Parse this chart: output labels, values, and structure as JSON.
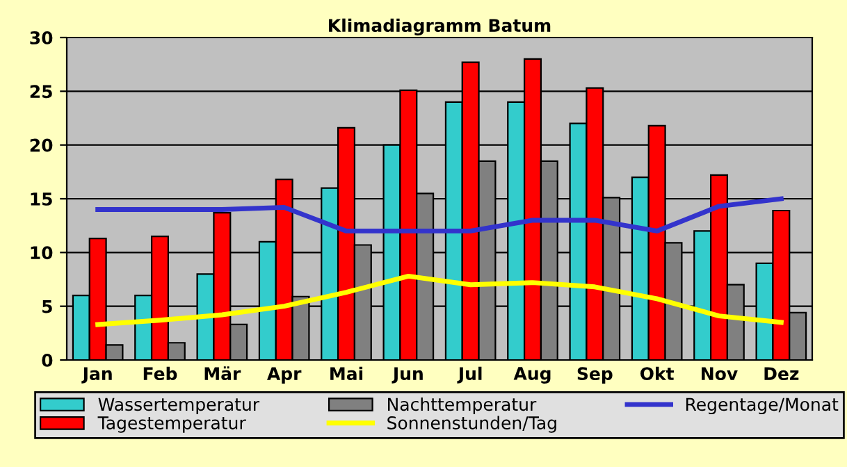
{
  "chart_data": {
    "type": "bar",
    "title": "Klimadiagramm Batum",
    "categories": [
      "Jan",
      "Feb",
      "Mär",
      "Apr",
      "Mai",
      "Jun",
      "Jul",
      "Aug",
      "Sep",
      "Okt",
      "Nov",
      "Dez"
    ],
    "series": [
      {
        "name": "Wassertemperatur",
        "color": "#33cccc",
        "values": [
          6,
          6,
          8,
          11,
          16,
          20,
          24,
          24,
          22,
          17,
          12,
          9
        ]
      },
      {
        "name": "Tagestemperatur",
        "color": "#ff0000",
        "values": [
          11.3,
          11.5,
          13.7,
          16.8,
          21.6,
          25.1,
          27.7,
          28,
          25.3,
          21.8,
          17.2,
          13.9
        ]
      },
      {
        "name": "Nachttemperatur",
        "color": "#808080",
        "values": [
          1.4,
          1.6,
          3.3,
          5.9,
          10.7,
          15.5,
          18.5,
          18.5,
          15.1,
          10.9,
          7.0,
          4.4
        ]
      },
      {
        "name": "Sonnenstunden/Tag",
        "color": "#ffff00",
        "type": "line",
        "values": [
          3.3,
          3.7,
          4.2,
          5.0,
          6.3,
          7.8,
          7.0,
          7.2,
          6.8,
          5.7,
          4.1,
          3.5
        ]
      },
      {
        "name": "Regentage/Monat",
        "color": "#3333cc",
        "type": "line",
        "values": [
          14,
          14,
          14,
          14.2,
          12,
          12,
          12,
          13,
          13,
          12,
          14.3,
          15
        ]
      }
    ],
    "ylim": [
      0,
      30
    ],
    "yticks": [
      0,
      5,
      10,
      15,
      20,
      25,
      30
    ],
    "grid": "y",
    "legend": "bottom"
  }
}
